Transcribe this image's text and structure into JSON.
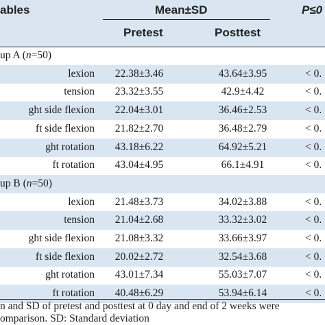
{
  "header": {
    "variables": "ables",
    "mean_sd": "Mean±SD",
    "p_value": "P≤0",
    "pretest": "Pretest",
    "posttest": "Posttest"
  },
  "groups": [
    {
      "label": "up A (n=50)",
      "rows": [
        {
          "label": "lexion",
          "pretest": "22.38±3.46",
          "posttest": "43.64±3.95",
          "p": "< 0."
        },
        {
          "label": "tension",
          "pretest": "23.32±3.55",
          "posttest": "42.9±4.42",
          "p": "< 0."
        },
        {
          "label": "ght side flexion",
          "pretest": "22.04±3.01",
          "posttest": "36.46±2.53",
          "p": "< 0."
        },
        {
          "label": "ft side flexion",
          "pretest": "21.82±2.70",
          "posttest": "36.48±2.79",
          "p": "< 0."
        },
        {
          "label": "ght rotation",
          "pretest": "43.18±6.22",
          "posttest": "64.92±5.21",
          "p": "< 0."
        },
        {
          "label": "ft rotation",
          "pretest": "43.04±4.95",
          "posttest": "66.1±4.91",
          "p": "< 0."
        }
      ]
    },
    {
      "label": "up B (n=50)",
      "rows": [
        {
          "label": "lexion",
          "pretest": "21.48±3.73",
          "posttest": "34.02±3.88",
          "p": "< 0."
        },
        {
          "label": "tension",
          "pretest": "21.04±2.68",
          "posttest": "33.32±3.02",
          "p": "< 0."
        },
        {
          "label": "ght side flexion",
          "pretest": "21.08±3.32",
          "posttest": "33.66±3.97",
          "p": "< 0."
        },
        {
          "label": "ft side flexion",
          "pretest": "20.02±2.72",
          "posttest": "32.54±3.68",
          "p": "< 0."
        },
        {
          "label": "ght rotation",
          "pretest": "43.01±7.34",
          "posttest": "55.03±7.07",
          "p": "< 0."
        },
        {
          "label": "ft rotation",
          "pretest": "40.48±6.29",
          "posttest": "53.94±6.14",
          "p": "< 0."
        }
      ]
    }
  ],
  "footnote": {
    "line1": "n and SD of pretest and posttest at 0 day and end of 2 weeks were",
    "line2": "omparison. SD: Standard deviation"
  }
}
